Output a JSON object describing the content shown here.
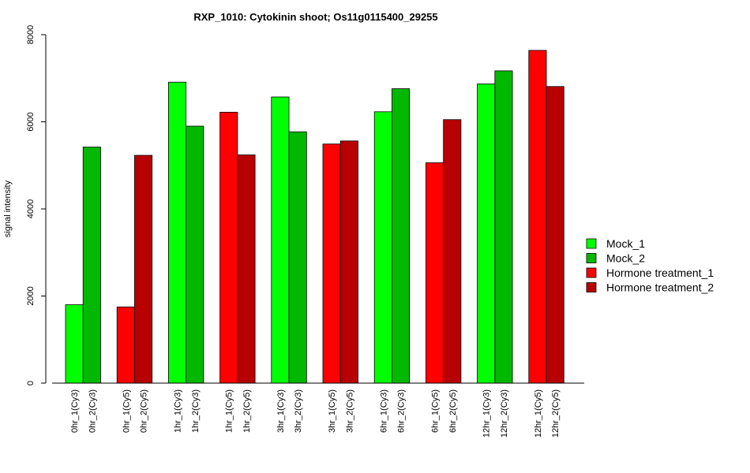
{
  "chart_data": {
    "type": "bar",
    "title": "RXP_1010: Cytokinin shoot; Os11g0115400_29255",
    "xlabel": "",
    "ylabel": "signal intensity",
    "ylim": [
      0,
      8000
    ],
    "yticks": [
      0,
      2000,
      4000,
      6000,
      8000
    ],
    "grid": false,
    "legend_position": "right",
    "categories": [
      "0hr_1(Cy3)",
      "0hr_2(Cy3)",
      "0hr_1(Cy5)",
      "0hr_2(Cy5)",
      "1hr_1(Cy3)",
      "1hr_2(Cy3)",
      "1hr_1(Cy5)",
      "1hr_2(Cy5)",
      "3hr_1(Cy3)",
      "3hr_2(Cy3)",
      "3hr_1(Cy5)",
      "3hr_2(Cy5)",
      "6hr_1(Cy3)",
      "6hr_2(Cy3)",
      "6hr_1(Cy5)",
      "6hr_2(Cy5)",
      "12hr_1(Cy3)",
      "12hr_2(Cy3)",
      "12hr_1(Cy5)",
      "12hr_2(Cy5)"
    ],
    "values": [
      1800,
      5420,
      1750,
      5230,
      6910,
      5900,
      6220,
      5240,
      6570,
      5770,
      5490,
      5560,
      6230,
      6760,
      5060,
      6050,
      6870,
      7170,
      7640,
      6810
    ],
    "bar_series": [
      0,
      1,
      2,
      3,
      0,
      1,
      2,
      3,
      0,
      1,
      2,
      3,
      0,
      1,
      2,
      3,
      0,
      1,
      2,
      3
    ],
    "series": [
      {
        "name": "Mock_1",
        "color": "#00ff00"
      },
      {
        "name": "Mock_2",
        "color": "#00b800"
      },
      {
        "name": "Hormone treatment_1",
        "color": "#ff0000"
      },
      {
        "name": "Hormone treatment_2",
        "color": "#b80000"
      }
    ]
  }
}
